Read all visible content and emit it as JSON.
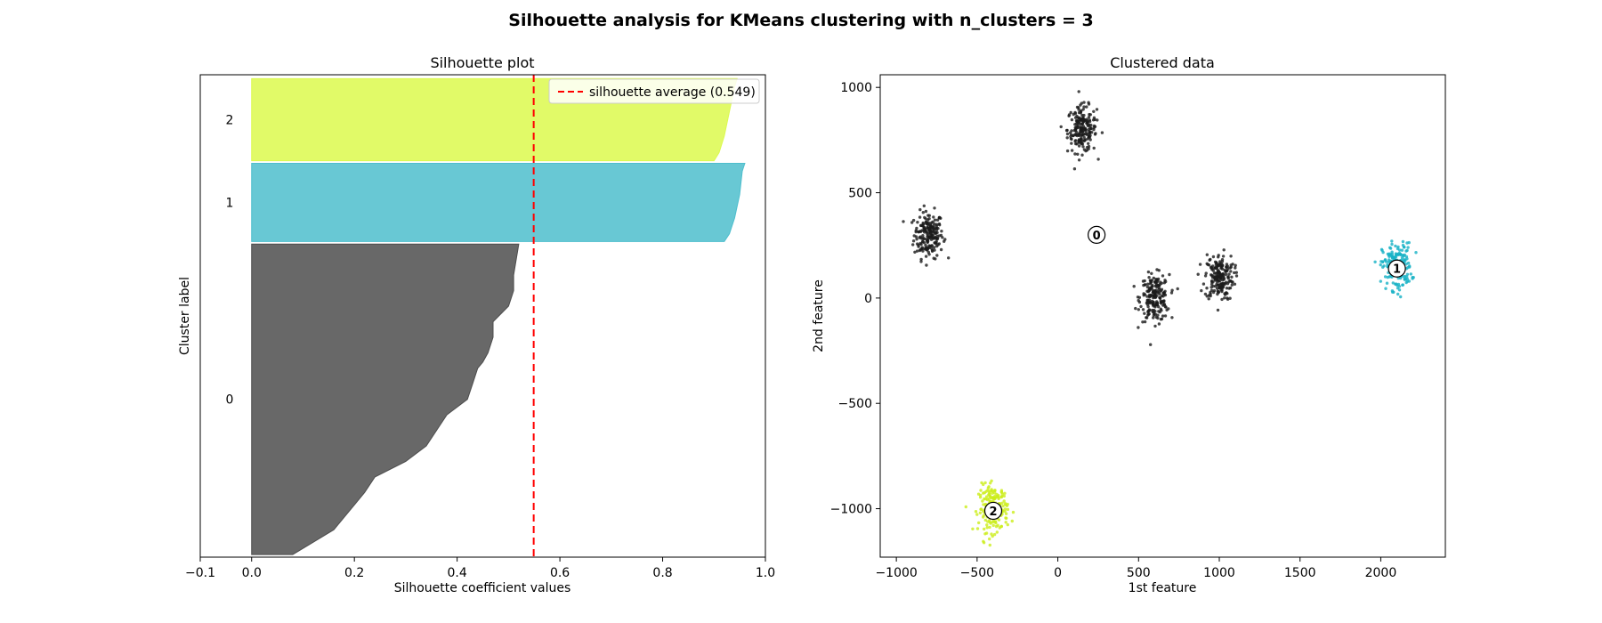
{
  "suptitle": "Silhouette analysis for KMeans clustering with n_clusters = 3",
  "colors": {
    "cluster_0": "#4d4d4d",
    "cluster_1": "#4dbecd",
    "cluster_2": "#dcf94e",
    "average_line": "#ff0000",
    "scatter_0": "#1a1a1a",
    "scatter_1": "#17b2c6",
    "scatter_2": "#ccee1a"
  },
  "chart_data": [
    {
      "type": "area",
      "title": "Silhouette plot",
      "xlabel": "Silhouette coefficient values",
      "ylabel": "Cluster label",
      "xlim": [
        -0.1,
        1.0
      ],
      "xticks": [
        "−0.1",
        "0.0",
        "0.2",
        "0.4",
        "0.6",
        "0.8",
        "1.0"
      ],
      "xtick_values": [
        -0.1,
        0.0,
        0.2,
        0.4,
        0.6,
        0.8,
        1.0
      ],
      "ylim": [
        0,
        1880
      ],
      "yticks": [],
      "average": 0.549,
      "legend": {
        "label": "silhouette average (0.549)",
        "position": "top-right"
      },
      "clusters": [
        {
          "label": "0",
          "y_range": [
            10,
            1220
          ],
          "color_key": "cluster_0",
          "profile": [
            [
              0.0,
              0.08
            ],
            [
              0.04,
              0.12
            ],
            [
              0.08,
              0.16
            ],
            [
              0.12,
              0.18
            ],
            [
              0.16,
              0.2
            ],
            [
              0.2,
              0.22
            ],
            [
              0.25,
              0.24
            ],
            [
              0.3,
              0.3
            ],
            [
              0.35,
              0.34
            ],
            [
              0.4,
              0.36
            ],
            [
              0.45,
              0.38
            ],
            [
              0.5,
              0.42
            ],
            [
              0.55,
              0.43
            ],
            [
              0.6,
              0.44
            ],
            [
              0.62,
              0.45
            ],
            [
              0.65,
              0.46
            ],
            [
              0.7,
              0.47
            ],
            [
              0.75,
              0.47
            ],
            [
              0.8,
              0.5
            ],
            [
              0.85,
              0.51
            ],
            [
              0.9,
              0.51
            ],
            [
              0.95,
              0.515
            ],
            [
              1.0,
              0.52
            ]
          ]
        },
        {
          "label": "1",
          "y_range": [
            1230,
            1535
          ],
          "color_key": "cluster_1",
          "profile": [
            [
              0.0,
              0.92
            ],
            [
              0.1,
              0.93
            ],
            [
              0.3,
              0.94
            ],
            [
              0.6,
              0.95
            ],
            [
              0.9,
              0.955
            ],
            [
              1.0,
              0.96
            ]
          ]
        },
        {
          "label": "2",
          "y_range": [
            1545,
            1865
          ],
          "color_key": "cluster_2",
          "profile": [
            [
              0.0,
              0.9
            ],
            [
              0.1,
              0.91
            ],
            [
              0.3,
              0.92
            ],
            [
              0.6,
              0.93
            ],
            [
              0.9,
              0.94
            ],
            [
              1.0,
              0.945
            ]
          ]
        }
      ]
    },
    {
      "type": "scatter",
      "title": "Clustered data",
      "xlabel": "1st feature",
      "ylabel": "2nd feature",
      "xlim": [
        -1100,
        2400
      ],
      "ylim": [
        -1230,
        1060
      ],
      "xticks": [
        "−1000",
        "−500",
        "0",
        "500",
        "1000",
        "1500",
        "2000"
      ],
      "xtick_values": [
        -1000,
        -500,
        0,
        500,
        1000,
        1500,
        2000
      ],
      "yticks": [
        "−1000",
        "−500",
        "0",
        "500",
        "1000"
      ],
      "ytick_values": [
        -1000,
        -500,
        0,
        500,
        1000
      ],
      "blobs": [
        {
          "cluster": 0,
          "cx": -800,
          "cy": 300,
          "sx": 45,
          "sy": 55,
          "n": 200
        },
        {
          "cluster": 0,
          "cx": 150,
          "cy": 800,
          "sx": 45,
          "sy": 55,
          "n": 200
        },
        {
          "cluster": 0,
          "cx": 600,
          "cy": 0,
          "sx": 45,
          "sy": 55,
          "n": 200
        },
        {
          "cluster": 0,
          "cx": 1000,
          "cy": 100,
          "sx": 45,
          "sy": 55,
          "n": 200
        },
        {
          "cluster": 1,
          "cx": 2100,
          "cy": 150,
          "sx": 45,
          "sy": 55,
          "n": 200
        },
        {
          "cluster": 2,
          "cx": -400,
          "cy": -1000,
          "sx": 45,
          "sy": 55,
          "n": 200
        }
      ],
      "centers": [
        {
          "label": "0",
          "x": 240,
          "y": 300
        },
        {
          "label": "1",
          "x": 2100,
          "y": 140
        },
        {
          "label": "2",
          "x": -400,
          "y": -1010
        }
      ]
    }
  ]
}
